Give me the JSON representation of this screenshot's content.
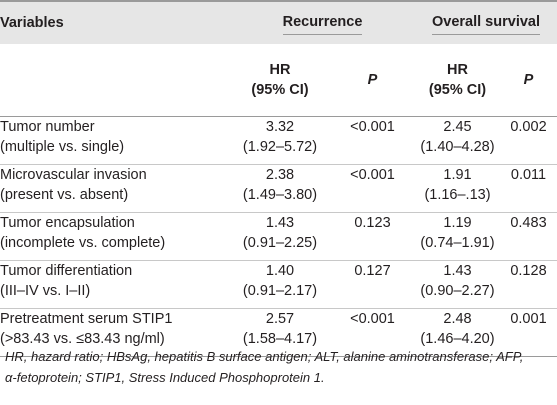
{
  "header": {
    "variables": "Variables",
    "recurrence": "Recurrence",
    "overall_survival": "Overall survival",
    "hr_line1": "HR",
    "hr_line2": "(95% CI)",
    "p": "P"
  },
  "rows": [
    {
      "name1": "Tumor number",
      "name2": "(multiple vs. single)",
      "rec_hr": "3.32",
      "rec_ci": "(1.92–5.72)",
      "rec_p": "<0.001",
      "os_hr": "2.45",
      "os_ci": "(1.40–4.28)",
      "os_p": "0.002"
    },
    {
      "name1": "Microvascular invasion",
      "name2": "(present vs. absent)",
      "rec_hr": "2.38",
      "rec_ci": "(1.49–3.80)",
      "rec_p": "<0.001",
      "os_hr": "1.91",
      "os_ci": "(1.16–.13)",
      "os_p": "0.011"
    },
    {
      "name1": "Tumor encapsulation",
      "name2": "(incomplete vs. complete)",
      "rec_hr": "1.43",
      "rec_ci": "(0.91–2.25)",
      "rec_p": "0.123",
      "os_hr": "1.19",
      "os_ci": "(0.74–1.91)",
      "os_p": "0.483"
    },
    {
      "name1": "Tumor differentiation",
      "name2": "(III–IV vs. I–II)",
      "rec_hr": "1.40",
      "rec_ci": "(0.91–2.17)",
      "rec_p": "0.127",
      "os_hr": "1.43",
      "os_ci": "(0.90–2.27)",
      "os_p": "0.128"
    },
    {
      "name1": "Pretreatment serum STIP1",
      "name2": "(>83.43 vs. ≤83.43 ng/ml)",
      "rec_hr": "2.57",
      "rec_ci": "(1.58–4.17)",
      "rec_p": "<0.001",
      "os_hr": "2.48",
      "os_ci": "(1.46–4.20)",
      "os_p": "0.001"
    }
  ],
  "footnote": {
    "line1": "HR, hazard ratio; HBsAg, hepatitis B surface antigen; ALT, alanine aminotransferase; AFP,",
    "line2": "α-fetoprotein; STIP1, Stress Induced Phosphoprotein 1."
  }
}
